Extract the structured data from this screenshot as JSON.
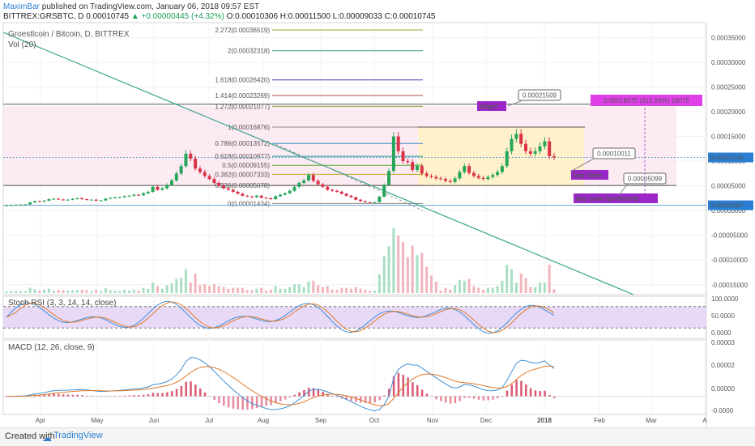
{
  "header": {
    "author": "MaximBar",
    "published": "published on TradingView.com, January 06, 2018 09:57 EST",
    "symbol": "BITTREX:GRSBTC, D",
    "last": "0.00010745",
    "change": "▲ +0.00000445 (+4.32%)",
    "ohlc": "O:0.00010306 H:0.00011500 L:0.00009033 C:0.00010745"
  },
  "legend": {
    "main": "Groestlcoin / Bitcoin, D, BITTREX",
    "vol": "Vol (20)",
    "stoch": "Stoch RSI (3, 3, 14, 14, close)",
    "macd": "MACD (12, 26, close, 9)"
  },
  "footer": {
    "made_with": "Created with",
    "brand": "TradingView"
  },
  "colors": {
    "up": "#26a65b",
    "down": "#d9334a",
    "fib_zone": "#fde9f2",
    "box": "#fff2c4",
    "label_purple": "#9b27c9",
    "last_price": "#2a7fd4"
  },
  "chart_data": [
    {
      "type": "candlestick",
      "title": "Groestlcoin / Bitcoin, D, BITTREX",
      "x_ticks": [
        "Apr",
        "May",
        "Jun",
        "Jul",
        "Aug",
        "Sep",
        "Oct",
        "Nov",
        "Dec",
        "2018",
        "Feb",
        "Mar",
        "A"
      ],
      "y_ticks": [
        "0.00035000",
        "0.00030000",
        "0.00025000",
        "0.00020000",
        "0.00015000",
        "0.00010000",
        "0.00005000",
        "0.00000000",
        "-0.00005000",
        "-0.00010000",
        "-0.00015000"
      ],
      "y_range": [
        -0.00017,
        0.00038
      ],
      "last_price_label": "0.00010745",
      "low_label": "0.00001067",
      "fib_levels": [
        {
          "label": "2.272(0.00036519)",
          "value": 0.00036519,
          "color": "#9aa82e"
        },
        {
          "label": "2(0.00032318)",
          "value": 0.00032318,
          "color": "#2e9e73"
        },
        {
          "label": "1.618(0.00026420)",
          "value": 0.0002642,
          "color": "#3c3ca8"
        },
        {
          "label": "1.414(0.00023269)",
          "value": 0.00023269,
          "color": "#b44a4a"
        },
        {
          "label": "1.272(0.00021077)",
          "value": 0.00021077,
          "color": "#8f9a2c"
        },
        {
          "label": "1(0.00016876)",
          "value": 0.00016876,
          "color": "#888888"
        },
        {
          "label": "0.786(0.00013572)",
          "value": 0.00013572,
          "color": "#3f86c4"
        },
        {
          "label": "0.618(0.00010977)",
          "value": 0.00010977,
          "color": "#1a9c8c"
        },
        {
          "label": "0.5(0.00009155)",
          "value": 9.155e-05,
          "color": "#5aaa2c"
        },
        {
          "label": "0.382(0.00007333)",
          "value": 7.333e-05,
          "color": "#b9a425"
        },
        {
          "label": "0.236(0.00005078)",
          "value": 5.078e-05,
          "color": "#c4862c"
        },
        {
          "label": "0(0.00001434)",
          "value": 1.434e-05,
          "color": "#888888"
        }
      ],
      "annotations": [
        {
          "text": "0.00021509",
          "kind": "callout"
        },
        {
          "text": "0.00010011",
          "kind": "callout"
        },
        {
          "text": "0.00005099",
          "kind": "callout"
        },
        {
          "text": "target",
          "kind": "label"
        },
        {
          "text": "buy zone",
          "kind": "label"
        },
        {
          "text": "buy zone (preferred)",
          "kind": "label"
        },
        {
          "text": "0.00016075 (315.26%) 16075",
          "kind": "measure"
        }
      ],
      "close_series": [
        1.08e-05,
        1.12e-05,
        1.18e-05,
        1.21e-05,
        1.24e-05,
        1.65e-05,
        1.9e-05,
        1.8e-05,
        2e-05,
        2.3e-05,
        2.4e-05,
        2.25e-05,
        2.1e-05,
        2.2e-05,
        2.35e-05,
        2.5e-05,
        2.3e-05,
        2.15e-05,
        2.2e-05,
        2e-05,
        2.05e-05,
        2.4e-05,
        2.55e-05,
        2.65e-05,
        2.7e-05,
        2.9e-05,
        3e-05,
        3.2e-05,
        3.1e-05,
        3.5e-05,
        3.8e-05,
        4.8e-05,
        4.2e-05,
        4.5e-05,
        5.2e-05,
        6.1e-05,
        7.5e-05,
        9e-05,
        0.000115,
        0.000105,
        8.5e-05,
        7.8e-05,
        7e-05,
        6.4e-05,
        5.6e-05,
        5e-05,
        4.5e-05,
        4.2e-05,
        3.8e-05,
        3.4e-05,
        3e-05,
        2.85e-05,
        2.7e-05,
        3e-05,
        2.6e-05,
        2.5e-05,
        2.3e-05,
        2.9e-05,
        3.2e-05,
        3.5e-05,
        4e-05,
        4.8e-05,
        5.6e-05,
        6.1e-05,
        7.2e-05,
        6e-05,
        5.3e-05,
        4.8e-05,
        4.2e-05,
        4e-05,
        3.8e-05,
        3.4e-05,
        3e-05,
        2.7e-05,
        2.2e-05,
        1.9e-05,
        1.7e-05,
        1.6e-05,
        1.7e-05,
        2.8e-05,
        5.2e-05,
        8e-05,
        0.00015,
        0.00012,
        0.0001,
        9.8e-05,
        8.2e-05,
        9e-05,
        7.5e-05,
        7e-05,
        6.8e-05,
        6.5e-05,
        6.4e-05,
        6e-05,
        5.8e-05,
        6.5e-05,
        7.8e-05,
        9e-05,
        7.6e-05,
        7e-05,
        6.6e-05,
        6.4e-05,
        6.8e-05,
        7.2e-05,
        7.8e-05,
        9e-05,
        0.00012,
        0.000145,
        0.000155,
        0.000135,
        0.00012,
        0.000115,
        0.00012,
        0.00013,
        0.00014,
        0.00011,
        0.0001075
      ]
    },
    {
      "type": "bar",
      "title": "Vol (20)",
      "y_ticks": []
    },
    {
      "type": "line",
      "title": "Stoch RSI (3, 3, 14, 14, close)",
      "y_ticks": [
        "100.0000",
        "50.0000",
        "0.0000"
      ],
      "y_range": [
        0,
        100
      ],
      "bands": [
        80,
        20
      ]
    },
    {
      "type": "line",
      "title": "MACD (12, 26, close, 9)",
      "y_ticks": [
        "0.00003",
        "0.00002",
        "0.00000",
        "-0.0000"
      ],
      "y_range": [
        -9e-06,
        2.8e-05
      ]
    }
  ]
}
